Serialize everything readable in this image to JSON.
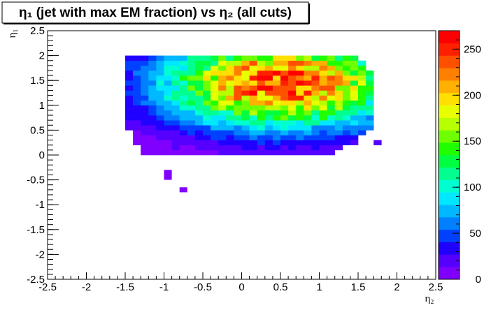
{
  "chart_data": {
    "type": "heatmap",
    "title": "η₁ (jet with max EM fraction) vs η₂ (all cuts)",
    "xlabel": "η₂",
    "ylabel": "η₁",
    "xlim": [
      -2.5,
      2.5
    ],
    "ylim": [
      -2.5,
      2.5
    ],
    "x_ticks": [
      "-2.5",
      "-2",
      "-1.5",
      "-1",
      "-0.5",
      "0",
      "0.5",
      "1",
      "1.5",
      "2",
      "2.5"
    ],
    "y_ticks": [
      "-2.5",
      "-2",
      "-1.5",
      "-1",
      "-0.5",
      "0",
      "0.5",
      "1",
      "1.5",
      "2",
      "2.5"
    ],
    "bin_width_x": 0.1,
    "bin_width_y": 0.1,
    "zlim": [
      0,
      270
    ],
    "z_ticks": [
      "0",
      "50",
      "100",
      "150",
      "200",
      "250"
    ],
    "grid": false,
    "legend": "color palette on right",
    "density_model": {
      "peak_x": 0.5,
      "peak_y": 1.45,
      "peak_value": 250,
      "x_range": [
        -1.5,
        1.8
      ],
      "y_range": [
        0.0,
        2.05
      ],
      "outliers": [
        {
          "x": -0.95,
          "y": -0.35,
          "z": 5
        },
        {
          "x": -0.95,
          "y": -0.45,
          "z": 5
        },
        {
          "x": -0.75,
          "y": -0.7,
          "z": 5
        }
      ]
    },
    "palette": [
      "#8000ff",
      "#5500ff",
      "#2000ff",
      "#0040ff",
      "#0080ff",
      "#00b8ff",
      "#00e8ff",
      "#00ffd0",
      "#00ff90",
      "#00ff40",
      "#20ff00",
      "#70ff00",
      "#b8ff00",
      "#e8ff00",
      "#ffe000",
      "#ffb000",
      "#ff8000",
      "#ff5000",
      "#ff2000",
      "#ff0000"
    ]
  }
}
